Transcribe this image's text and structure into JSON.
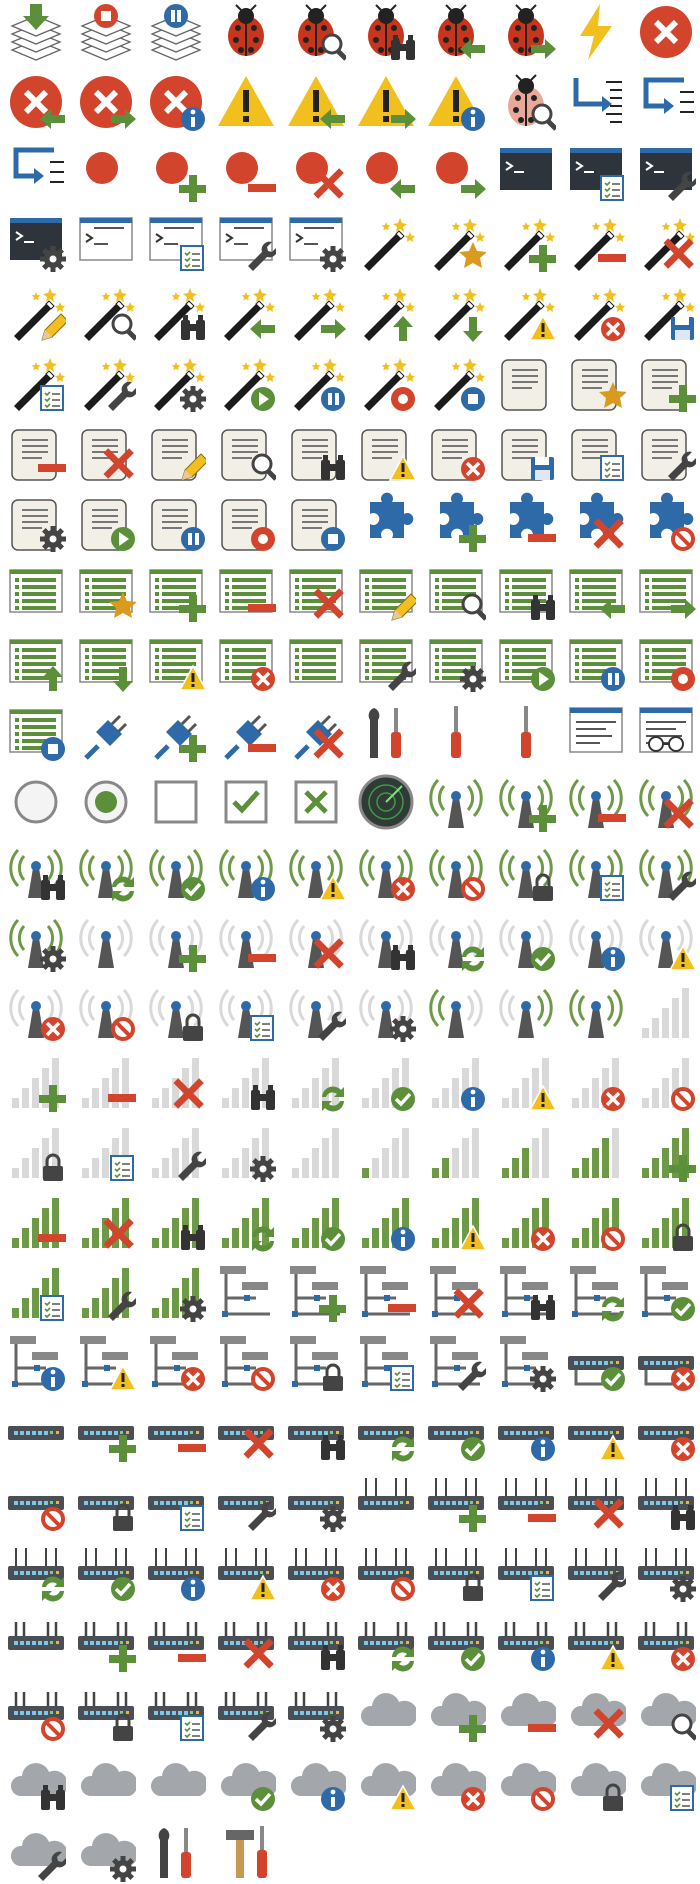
{
  "colors": {
    "green": "#5b8f3a",
    "red": "#d2452c",
    "blue": "#2f6aa8",
    "yellow": "#f2c01e",
    "dark": "#333a44",
    "gray": "#9a9da1",
    "lightgray": "#d9d9d9",
    "paper": "#f2efe6",
    "signal": "#6e9a48",
    "ladybug": "#c8351d"
  },
  "rows": [
    [
      "layers-download",
      "layers-stop",
      "layers-pause",
      "bug",
      "bug-search",
      "bug-binoculars",
      "bug-back",
      "bug-forward",
      "lightning",
      "error"
    ],
    [
      "error-back",
      "error-forward",
      "error-info",
      "warning",
      "warning-back",
      "warning-forward",
      "warning-info",
      "bug-search-fade",
      "step-into",
      "step-out"
    ],
    [
      "step-over",
      "breakpoint",
      "breakpoint-add",
      "breakpoint-remove",
      "breakpoint-delete",
      "breakpoint-back",
      "breakpoint-forward",
      "console",
      "console-list",
      "console-wrench"
    ],
    [
      "console-gear",
      "console-light",
      "console-light-list",
      "console-light-wrench",
      "console-light-gear",
      "wand",
      "wand-star",
      "wand-add",
      "wand-remove",
      "wand-delete"
    ],
    [
      "wand-edit",
      "wand-search",
      "wand-binoculars",
      "wand-back",
      "wand-forward",
      "wand-up",
      "wand-down",
      "wand-warning",
      "wand-error",
      "wand-save"
    ],
    [
      "wand-list",
      "wand-wrench",
      "wand-gear",
      "wand-play",
      "wand-pause",
      "wand-record",
      "wand-stop",
      "script",
      "script-star",
      "script-add"
    ],
    [
      "script-remove",
      "script-delete",
      "script-edit",
      "script-search",
      "script-binoculars",
      "script-warning",
      "script-error",
      "script-save",
      "script-list",
      "script-wrench"
    ],
    [
      "script-gear",
      "script-play",
      "script-pause",
      "script-record",
      "script-stop",
      "plugin",
      "plugin-add",
      "plugin-remove",
      "plugin-delete",
      "plugin-block"
    ],
    [
      "list",
      "list-star",
      "list-add",
      "list-remove",
      "list-delete",
      "list-edit",
      "list-search",
      "list-binoculars",
      "list-back",
      "list-forward"
    ],
    [
      "list-up",
      "list-down",
      "list-warning",
      "list-error",
      "list-checklist",
      "list-wrench",
      "list-gear",
      "list-play",
      "list-pause",
      "list-record"
    ],
    [
      "list-stop",
      "plug",
      "plug-add",
      "plug-remove",
      "plug-delete",
      "tools",
      "screwdriver-red",
      "screwdriver",
      "window-list",
      "window-glasses"
    ],
    [
      "radio-off",
      "radio-on",
      "checkbox",
      "checkbox-checked",
      "checkbox-x",
      "radar",
      "antenna",
      "antenna-add",
      "antenna-remove",
      "antenna-delete"
    ],
    [
      "antenna-binoculars",
      "antenna-sync",
      "antenna-ok",
      "antenna-info",
      "antenna-warning",
      "antenna-error",
      "antenna-block",
      "antenna-lock",
      "antenna-list",
      "antenna-wrench"
    ],
    [
      "antenna-gear",
      "antenna-gray",
      "antenna-gray-add",
      "antenna-gray-remove",
      "antenna-gray-delete",
      "antenna-gray-binoculars",
      "antenna-gray-sync",
      "antenna-gray-ok",
      "antenna-gray-info",
      "antenna-gray-warning"
    ],
    [
      "antenna-gray-error",
      "antenna-gray-block",
      "antenna-gray-lock",
      "antenna-gray-list",
      "antenna-gray-wrench",
      "antenna-gray-gear",
      "antenna-green-gray",
      "antenna-gray-green",
      "antenna-green",
      "signal-0"
    ],
    [
      "signal-add",
      "signal-remove",
      "signal-delete",
      "signal-binoculars",
      "signal-sync",
      "signal-ok",
      "signal-info",
      "signal-warning",
      "signal-error",
      "signal-block"
    ],
    [
      "signal-lock",
      "signal-list",
      "signal-wrench",
      "signal-gear",
      "signal-0b",
      "signal-1",
      "signal-2",
      "signal-3",
      "signal-4",
      "signal-5-add"
    ],
    [
      "signal-5-remove",
      "signal-5-delete",
      "signal-5-binoculars",
      "signal-5-sync",
      "signal-5-ok",
      "signal-5-info",
      "signal-5-warning",
      "signal-5-error",
      "signal-5-block",
      "signal-5-lock"
    ],
    [
      "signal-5-list",
      "signal-5-wrench",
      "signal-5-gear",
      "network",
      "network-add",
      "network-remove",
      "network-delete",
      "network-binoculars",
      "network-sync",
      "network-ok"
    ],
    [
      "network-info",
      "network-warning",
      "network-error",
      "network-block",
      "network-lock",
      "network-list",
      "network-wrench",
      "network-gear",
      "network-switch-ok",
      "network-switch-error"
    ],
    [
      "switch",
      "switch-add",
      "switch-remove",
      "switch-delete",
      "switch-binoculars",
      "switch-sync",
      "switch-ok",
      "switch-info",
      "switch-warning",
      "switch-error"
    ],
    [
      "switch-block",
      "switch-lock",
      "switch-list",
      "switch-wrench",
      "switch-gear",
      "router",
      "router-add",
      "router-remove",
      "router-delete",
      "router-binoculars"
    ],
    [
      "router-sync",
      "router-ok",
      "router-info",
      "router-warning",
      "router-error",
      "router-block",
      "router-lock",
      "router-list",
      "router-wrench",
      "router-gear"
    ],
    [
      "router2",
      "router2-add",
      "router2-remove",
      "router2-delete",
      "router2-binoculars",
      "router2-sync",
      "router2-ok",
      "router2-info",
      "router2-warning",
      "router2-error"
    ],
    [
      "router2-block",
      "router2-lock",
      "router2-list",
      "router2-wrench",
      "router2-gear",
      "cloud",
      "cloud-add",
      "cloud-remove",
      "cloud-delete",
      "cloud-search"
    ],
    [
      "cloud-binoculars",
      "cloud-download",
      "cloud-upload",
      "cloud-ok",
      "cloud-info",
      "cloud-warning",
      "cloud-error",
      "cloud-block",
      "cloud-lock",
      "cloud-list"
    ],
    [
      "cloud-wrench",
      "cloud-gear",
      "tools-b",
      "hammer-screwdriver"
    ]
  ]
}
